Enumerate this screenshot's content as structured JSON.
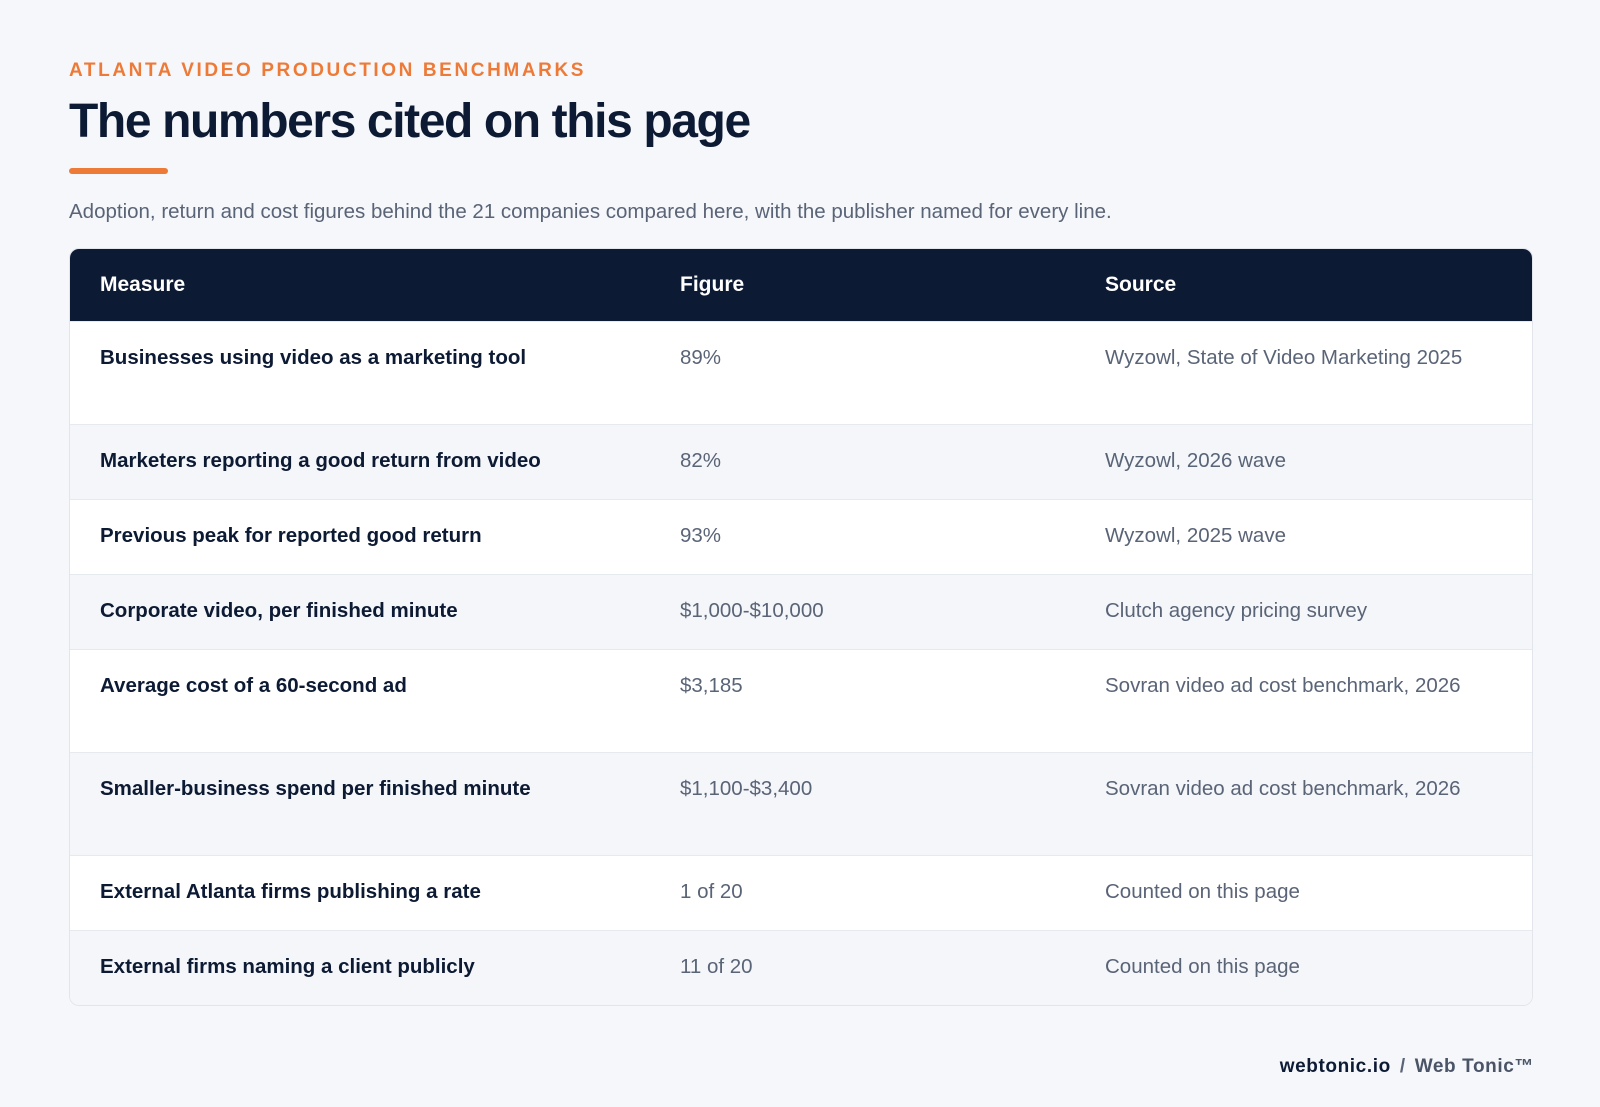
{
  "header": {
    "eyebrow": "ATLANTA VIDEO PRODUCTION BENCHMARKS",
    "title": "The numbers cited on this page",
    "subtitle": "Adoption, return and cost figures behind the 21 companies compared here, with the publisher named for every line."
  },
  "table": {
    "columns": [
      "Measure",
      "Figure",
      "Source"
    ],
    "rows": [
      {
        "measure": "Businesses using video as a marketing tool",
        "figure": "89%",
        "source": "Wyzowl, State of Video Marketing 2025"
      },
      {
        "measure": "Marketers reporting a good return from video",
        "figure": "82%",
        "source": "Wyzowl, 2026 wave"
      },
      {
        "measure": "Previous peak for reported good return",
        "figure": "93%",
        "source": "Wyzowl, 2025 wave"
      },
      {
        "measure": "Corporate video, per finished minute",
        "figure": "$1,000-$10,000",
        "source": "Clutch agency pricing survey"
      },
      {
        "measure": "Average cost of a 60-second ad",
        "figure": "$3,185",
        "source": "Sovran video ad cost benchmark, 2026"
      },
      {
        "measure": "Smaller-business spend per finished minute",
        "figure": "$1,100-$3,400",
        "source": "Sovran video ad cost benchmark, 2026"
      },
      {
        "measure": "External Atlanta firms publishing a rate",
        "figure": "1 of 20",
        "source": "Counted on this page"
      },
      {
        "measure": "External firms naming a client publicly",
        "figure": "11 of 20",
        "source": "Counted on this page"
      }
    ]
  },
  "footer": {
    "domain": "webtonic.io",
    "separator": "/",
    "brand": "Web Tonic™"
  },
  "colors": {
    "accent": "#ee7a38",
    "header_bg": "#0d1a34",
    "page_bg": "#f5f7fa"
  }
}
